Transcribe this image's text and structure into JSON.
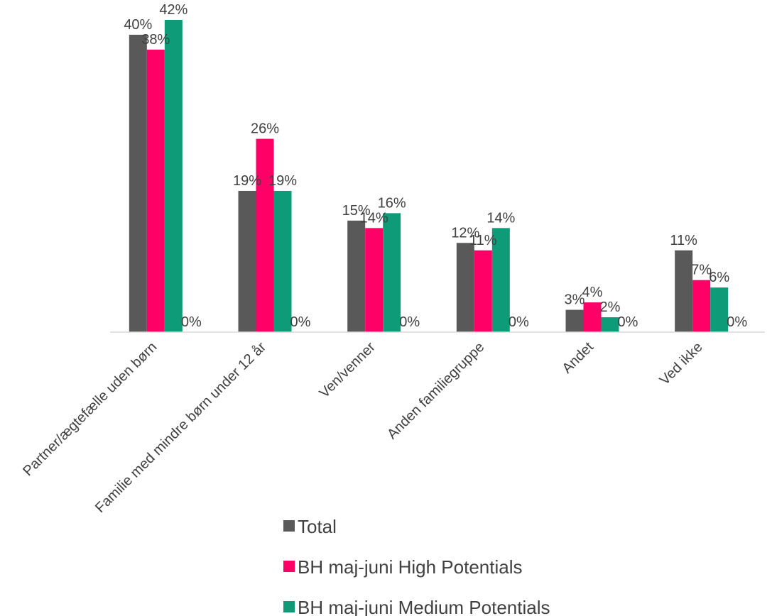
{
  "chart_data": {
    "type": "bar",
    "categories": [
      "Partner/ægtefælle uden børn",
      "Familie med mindre børn under 12 år",
      "Ven/venner",
      "Anden familiegruppe",
      "Andet",
      "Ved ikke"
    ],
    "series": [
      {
        "name": "Total",
        "color": "#595959",
        "values": [
          40,
          19,
          15,
          12,
          3,
          11
        ],
        "labels": [
          "40%",
          "19%",
          "15%",
          "12%",
          "3%",
          "11%"
        ]
      },
      {
        "name": "BH maj-juni High Potentials",
        "color": "#FF0066",
        "values": [
          38,
          26,
          14,
          11,
          4,
          7
        ],
        "labels": [
          "38%",
          "26%",
          "14%",
          "11%",
          "4%",
          "7%"
        ]
      },
      {
        "name": "BH maj-juni Medium Potentials",
        "color": "#0E9B78",
        "values": [
          42,
          19,
          16,
          14,
          2,
          6
        ],
        "labels": [
          "42%",
          "19%",
          "16%",
          "14%",
          "2%",
          "6%"
        ]
      },
      {
        "name": "",
        "color": "#ffffff",
        "values": [
          0,
          0,
          0,
          0,
          0,
          0
        ],
        "labels": [
          "0%",
          "0%",
          "0%",
          "0%",
          "0%",
          "0%"
        ]
      }
    ],
    "title": "",
    "xlabel": "",
    "ylabel": "",
    "ylim": [
      0,
      42
    ],
    "grid": false,
    "legend": "bottom",
    "baseline_color": "#d9d9d9"
  }
}
